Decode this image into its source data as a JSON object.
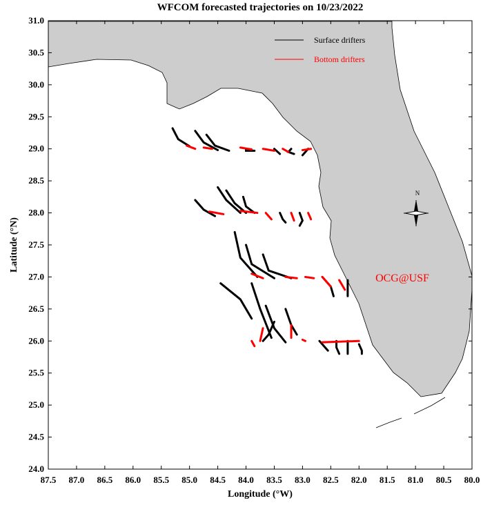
{
  "chart_data": {
    "type": "line",
    "title": "WFCOM forecasted trajectories on 10/23/2022",
    "x_label": "Longitude (°W)",
    "y_label": "Latitude (°N)",
    "xlim": [
      87.5,
      80.0
    ],
    "ylim": [
      24.0,
      31.0
    ],
    "xticks": [
      87.5,
      {
        "value": 87,
        "label": "87.0"
      },
      86.5,
      {
        "value": 86,
        "label": "86.0"
      },
      85.5,
      {
        "value": 85,
        "label": "85.0"
      },
      84.5,
      {
        "value": 84,
        "label": "84.0"
      },
      83.5,
      {
        "value": 83,
        "label": "83.0"
      },
      82.5,
      {
        "value": 82,
        "label": "82.0"
      },
      81.5,
      {
        "value": 81,
        "label": "81.0"
      },
      80.5,
      {
        "value": 80,
        "label": "80.0"
      }
    ],
    "yticks": [
      {
        "value": 24,
        "label": "24.0"
      },
      24.5,
      {
        "value": 25,
        "label": "25.0"
      },
      25.5,
      {
        "value": 26,
        "label": "26.0"
      },
      26.5,
      {
        "value": 27,
        "label": "27.0"
      },
      27.5,
      {
        "value": 28,
        "label": "28.0"
      },
      28.5,
      {
        "value": 29,
        "label": "29.0"
      },
      29.5,
      {
        "value": 30,
        "label": "30.0"
      },
      30.5,
      {
        "value": 31,
        "label": "31.0"
      }
    ],
    "annotations": [
      "OCG@USF",
      "N"
    ],
    "series": [
      {
        "name": "Surface drifters",
        "color": "#000000",
        "tracks": [
          {
            "x": [
              85.3,
              85.2,
              85.0
            ],
            "y": [
              29.32,
              29.15,
              29.04
            ]
          },
          {
            "x": [
              84.9,
              84.75,
              84.5
            ],
            "y": [
              29.28,
              29.1,
              28.98
            ]
          },
          {
            "x": [
              84.7,
              84.55,
              84.3
            ],
            "y": [
              29.22,
              29.05,
              28.97
            ]
          },
          {
            "x": [
              84.0,
              84.0,
              83.85
            ],
            "y": [
              29.0,
              28.97,
              28.97
            ]
          },
          {
            "x": [
              83.5,
              83.45,
              83.4
            ],
            "y": [
              29.0,
              28.96,
              28.92
            ]
          },
          {
            "x": [
              83.2,
              83.25,
              83.15
            ],
            "y": [
              29.0,
              28.95,
              28.92
            ]
          },
          {
            "x": [
              82.9,
              82.95,
              83.0
            ],
            "y": [
              29.0,
              28.95,
              28.9
            ]
          },
          {
            "x": [
              84.5,
              84.35,
              84.1
            ],
            "y": [
              28.4,
              28.2,
              28.0
            ]
          },
          {
            "x": [
              84.35,
              84.2,
              84.0
            ],
            "y": [
              28.35,
              28.15,
              28.0
            ]
          },
          {
            "x": [
              84.05,
              84.0,
              83.85
            ],
            "y": [
              28.25,
              28.1,
              28.0
            ]
          },
          {
            "x": [
              84.9,
              84.75,
              84.55
            ],
            "y": [
              28.2,
              28.05,
              27.95
            ]
          },
          {
            "x": [
              83.4,
              83.35,
              83.3
            ],
            "y": [
              28.0,
              27.9,
              27.85
            ]
          },
          {
            "x": [
              83.05,
              83.0,
              83.05
            ],
            "y": [
              28.0,
              27.88,
              27.8
            ]
          },
          {
            "x": [
              84.2,
              84.1,
              83.8
            ],
            "y": [
              27.7,
              27.3,
              27.0
            ]
          },
          {
            "x": [
              84.0,
              83.9,
              83.5
            ],
            "y": [
              27.5,
              27.2,
              26.98
            ]
          },
          {
            "x": [
              83.7,
              83.6,
              83.2
            ],
            "y": [
              27.35,
              27.1,
              26.98
            ]
          },
          {
            "x": [
              84.45,
              84.1,
              83.9
            ],
            "y": [
              26.9,
              26.65,
              26.35
            ]
          },
          {
            "x": [
              83.9,
              83.75,
              83.55
            ],
            "y": [
              26.9,
              26.5,
              26.05
            ]
          },
          {
            "x": [
              82.65,
              82.5,
              82.45
            ],
            "y": [
              27.0,
              26.85,
              26.7
            ]
          },
          {
            "x": [
              82.2,
              82.2,
              82.2
            ],
            "y": [
              26.95,
              26.8,
              26.7
            ]
          },
          {
            "x": [
              83.65,
              83.5,
              83.3
            ],
            "y": [
              26.55,
              26.2,
              25.98
            ]
          },
          {
            "x": [
              83.3,
              83.2,
              83.1
            ],
            "y": [
              26.5,
              26.25,
              26.1
            ]
          },
          {
            "x": [
              83.5,
              83.6,
              83.7
            ],
            "y": [
              26.3,
              26.1,
              26.0
            ]
          },
          {
            "x": [
              82.7,
              82.6,
              82.55
            ],
            "y": [
              26.0,
              25.9,
              25.85
            ]
          },
          {
            "x": [
              82.4,
              82.4,
              82.35
            ],
            "y": [
              26.0,
              25.9,
              25.8
            ]
          },
          {
            "x": [
              82.2,
              82.2,
              82.2
            ],
            "y": [
              26.0,
              25.9,
              25.8
            ]
          },
          {
            "x": [
              82.0,
              81.95,
              81.95
            ],
            "y": [
              25.95,
              25.85,
              25.8
            ]
          }
        ]
      },
      {
        "name": "Bottom drifters",
        "color": "#ff0000",
        "tracks": [
          {
            "x": [
              85.05,
              84.9
            ],
            "y": [
              29.05,
              29.0
            ]
          },
          {
            "x": [
              84.75,
              84.6
            ],
            "y": [
              29.02,
              29.0
            ]
          },
          {
            "x": [
              84.1,
              83.9
            ],
            "y": [
              29.02,
              28.99
            ]
          },
          {
            "x": [
              83.7,
              83.5
            ],
            "y": [
              29.0,
              28.97
            ]
          },
          {
            "x": [
              83.35,
              83.25
            ],
            "y": [
              29.0,
              28.95
            ]
          },
          {
            "x": [
              83.0,
              82.85
            ],
            "y": [
              28.98,
              29.0
            ]
          },
          {
            "x": [
              84.65,
              84.4
            ],
            "y": [
              28.02,
              27.98
            ]
          },
          {
            "x": [
              84.1,
              83.8
            ],
            "y": [
              28.03,
              28.0
            ]
          },
          {
            "x": [
              83.65,
              83.55
            ],
            "y": [
              28.0,
              27.9
            ]
          },
          {
            "x": [
              83.2,
              83.15
            ],
            "y": [
              28.0,
              27.88
            ]
          },
          {
            "x": [
              82.9,
              82.85
            ],
            "y": [
              28.0,
              27.9
            ]
          },
          {
            "x": [
              83.9,
              83.7
            ],
            "y": [
              27.05,
              26.98
            ]
          },
          {
            "x": [
              83.3,
              83.1
            ],
            "y": [
              27.0,
              26.98
            ]
          },
          {
            "x": [
              82.95,
              82.8
            ],
            "y": [
              27.0,
              26.98
            ]
          },
          {
            "x": [
              82.65,
              82.5
            ],
            "y": [
              27.0,
              26.85
            ]
          },
          {
            "x": [
              82.35,
              82.25
            ],
            "y": [
              26.95,
              26.8
            ]
          },
          {
            "x": [
              83.75,
              83.7
            ],
            "y": [
              26.0,
              26.2
            ]
          },
          {
            "x": [
              83.2,
              83.2
            ],
            "y": [
              26.05,
              26.25
            ]
          },
          {
            "x": [
              82.65,
              82.0
            ],
            "y": [
              25.98,
              26.0
            ]
          },
          {
            "x": [
              83.0,
              82.95
            ],
            "y": [
              26.02,
              26.0
            ]
          },
          {
            "x": [
              83.9,
              83.85
            ],
            "y": [
              26.0,
              25.92
            ]
          }
        ]
      }
    ]
  }
}
